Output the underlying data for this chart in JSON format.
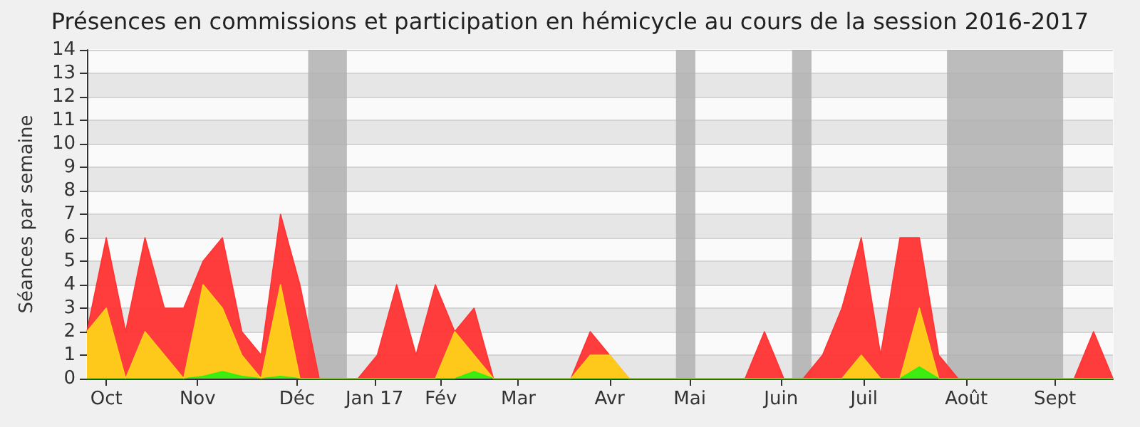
{
  "chart_data": {
    "type": "area",
    "title": "Présences en commissions et participation en hémicycle au cours de la session 2016-2017",
    "ylabel": "Séances par semaine",
    "x": [
      "2016-09-26",
      "2016-10-03",
      "2016-10-10",
      "2016-10-17",
      "2016-10-24",
      "2016-10-31",
      "2016-11-07",
      "2016-11-14",
      "2016-11-21",
      "2016-11-28",
      "2016-12-05",
      "2016-12-12",
      "2016-12-19",
      "2016-12-26",
      "2017-01-02",
      "2017-01-09",
      "2017-01-16",
      "2017-01-23",
      "2017-01-30",
      "2017-02-06",
      "2017-02-13",
      "2017-02-20",
      "2017-02-27",
      "2017-03-06",
      "2017-03-13",
      "2017-03-20",
      "2017-03-27",
      "2017-04-03",
      "2017-04-10",
      "2017-04-17",
      "2017-04-24",
      "2017-05-01",
      "2017-05-08",
      "2017-05-15",
      "2017-05-22",
      "2017-05-29",
      "2017-06-05",
      "2017-06-12",
      "2017-06-19",
      "2017-06-26",
      "2017-07-03",
      "2017-07-10",
      "2017-07-17",
      "2017-07-24",
      "2017-07-31",
      "2017-08-07",
      "2017-08-14",
      "2017-08-21",
      "2017-08-28",
      "2017-09-04",
      "2017-09-11",
      "2017-09-18",
      "2017-09-25",
      "2017-10-02"
    ],
    "series": [
      {
        "color": "#ff3333",
        "values": [
          2,
          6,
          2,
          6,
          3,
          3,
          5,
          6,
          2,
          1,
          7,
          4,
          0,
          0,
          0,
          1,
          4,
          1,
          4,
          2,
          3,
          0,
          0,
          0,
          0,
          0,
          2,
          1,
          0,
          0,
          0,
          0,
          0,
          0,
          0,
          2,
          0,
          0,
          1,
          3,
          6,
          1,
          6,
          6,
          1,
          0,
          0,
          0,
          0,
          0,
          0,
          0,
          2,
          0
        ]
      },
      {
        "color": "#ffd11a",
        "values": [
          2,
          3,
          0,
          2,
          1,
          0,
          4,
          3,
          1,
          0,
          4,
          0,
          0,
          0,
          0,
          0,
          0,
          0,
          0,
          2,
          1,
          0,
          0,
          0,
          0,
          0,
          1,
          1,
          0,
          0,
          0,
          0,
          0,
          0,
          0,
          0,
          0,
          0,
          0,
          0,
          1,
          0,
          0,
          3,
          0,
          0,
          0,
          0,
          0,
          0,
          0,
          0,
          0,
          0
        ]
      },
      {
        "color": "#33ee11",
        "values": [
          0,
          0,
          0,
          0,
          0,
          0,
          0.1,
          0.3,
          0.1,
          0,
          0.1,
          0,
          0,
          0,
          0,
          0,
          0,
          0,
          0,
          0,
          0.3,
          0,
          0,
          0,
          0,
          0,
          0,
          0,
          0,
          0,
          0,
          0,
          0,
          0,
          0,
          0,
          0,
          0,
          0,
          0,
          0,
          0,
          0,
          0.5,
          0,
          0,
          0,
          0,
          0,
          0,
          0,
          0,
          0,
          0
        ]
      }
    ],
    "xlim": [
      "2016-09-26",
      "2017-10-02"
    ],
    "xticks": [
      {
        "value": "2016-10-03",
        "label": "Oct"
      },
      {
        "value": "2016-11-05",
        "label": "Nov"
      },
      {
        "value": "2016-12-11",
        "label": "Déc"
      },
      {
        "value": "2017-01-08",
        "label": "Jan 17"
      },
      {
        "value": "2017-02-01",
        "label": "Fév"
      },
      {
        "value": "2017-03-01",
        "label": "Mar"
      },
      {
        "value": "2017-04-03",
        "label": "Avr"
      },
      {
        "value": "2017-05-02",
        "label": "Mai"
      },
      {
        "value": "2017-06-04",
        "label": "Juin"
      },
      {
        "value": "2017-07-04",
        "label": "Juil"
      },
      {
        "value": "2017-08-10",
        "label": "Août"
      },
      {
        "value": "2017-09-11",
        "label": "Sept"
      }
    ],
    "ylim": [
      0,
      14
    ],
    "yticks": [
      0,
      1,
      2,
      3,
      4,
      5,
      6,
      7,
      8,
      9,
      10,
      11,
      12,
      13,
      14
    ],
    "bands": [
      {
        "axis": "x",
        "from": "2016-12-15",
        "to": "2016-12-29",
        "color": "#b0b0b0"
      },
      {
        "axis": "x",
        "from": "2017-04-27",
        "to": "2017-05-04",
        "color": "#b0b0b0"
      },
      {
        "axis": "x",
        "from": "2017-06-08",
        "to": "2017-06-15",
        "color": "#b0b0b0"
      },
      {
        "axis": "x",
        "from": "2017-08-03",
        "to": "2017-09-14",
        "color": "#b0b0b0"
      }
    ],
    "grid": "y",
    "marker": "none",
    "line_style": "solid"
  }
}
